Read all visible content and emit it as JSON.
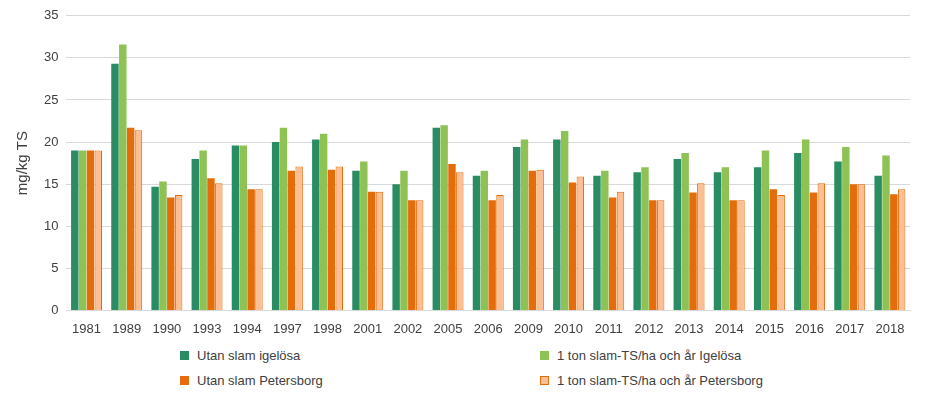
{
  "chart_data": {
    "type": "bar",
    "y_label": "mg/kg TS",
    "categories": [
      "1981",
      "1989",
      "1990",
      "1993",
      "1994",
      "1997",
      "1998",
      "2001",
      "2002",
      "2005",
      "2006",
      "2009",
      "2010",
      "2011",
      "2012",
      "2013",
      "2014",
      "2015",
      "2016",
      "2017",
      "2018"
    ],
    "series": [
      {
        "name": "Utan slam igelösa",
        "color": "#2a8c63",
        "values": [
          19,
          29.3,
          14.7,
          18,
          19.6,
          20,
          20.3,
          16.6,
          15,
          21.7,
          16,
          19.4,
          20.3,
          16,
          16.4,
          18,
          16.4,
          17,
          18.7,
          17.7,
          16
        ]
      },
      {
        "name": "1 ton slam-TS/ha och år Igelösa",
        "color": "#8fc255",
        "values": [
          19,
          31.6,
          15.3,
          19,
          19.6,
          21.7,
          21,
          17.7,
          16.6,
          22,
          16.6,
          20.3,
          21.3,
          16.6,
          17,
          18.7,
          17,
          19,
          20.3,
          19.4,
          18.4
        ]
      },
      {
        "name": "Utan slam Petersborg",
        "color": "#e46c0a",
        "values": [
          19,
          21.7,
          13.4,
          15.7,
          14.4,
          16.6,
          16.7,
          14.1,
          13.1,
          17.4,
          13.1,
          16.6,
          15.2,
          13.4,
          13.1,
          14,
          13.1,
          14.4,
          14,
          15,
          13.8
        ]
      },
      {
        "name": "1 ton slam-TS/ha och år Petersborg",
        "color": "#fbbf93",
        "values": [
          19,
          21.4,
          13.7,
          15.1,
          14.4,
          17.1,
          17.1,
          14.1,
          13.1,
          16.4,
          13.7,
          16.7,
          15.9,
          14.1,
          13.1,
          15.1,
          13.1,
          13.7,
          15.1,
          15,
          14.4
        ]
      }
    ],
    "ylim": [
      0,
      35
    ],
    "yticks": [
      0,
      5,
      10,
      15,
      20,
      25,
      30,
      35
    ],
    "grid": true,
    "legend": "bottom"
  }
}
